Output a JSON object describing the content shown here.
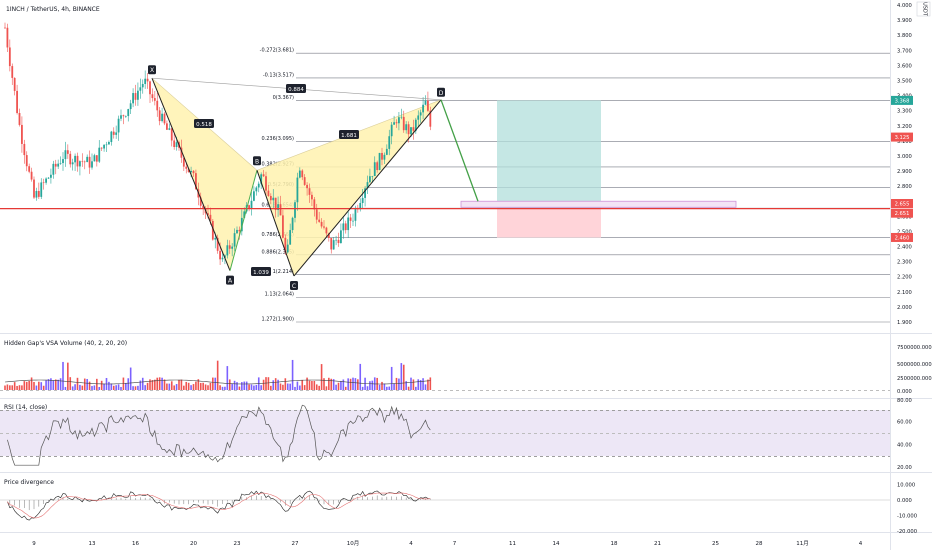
{
  "header": {
    "symbol_title": "1INCH / TetherUS, 4h, BINANCE"
  },
  "price_axis": {
    "currency": "USDT",
    "ticks": [
      "4.000",
      "3.900",
      "3.800",
      "3.700",
      "3.600",
      "3.500",
      "3.400",
      "3.300",
      "3.200",
      "3.100",
      "3.000",
      "2.900",
      "2.800",
      "2.700",
      "2.600",
      "2.500",
      "2.400",
      "2.300",
      "2.200",
      "2.100",
      "2.000",
      "1.900"
    ],
    "badges": {
      "target_label": "3.368",
      "last_label": "3.125",
      "entry_label": "2.655",
      "line_label": "2.651",
      "stop_label": "2.460"
    },
    "badge_colors": {
      "target": "#26a69a",
      "last": "#ef5350",
      "entry": "#ef5350",
      "line": "#ef5350",
      "stop": "#ef5350"
    }
  },
  "time_axis": {
    "ticks": [
      "9",
      "13",
      "16",
      "20",
      "23",
      "27",
      "10月",
      "4",
      "7",
      "11",
      "14",
      "18",
      "21",
      "25",
      "28",
      "11月",
      "4"
    ]
  },
  "harmonic": {
    "points": [
      "X",
      "A",
      "B",
      "C",
      "D"
    ],
    "ratio_xb": "0.518",
    "ratio_ac": "1.039",
    "ratio_bd": "1.681",
    "ratio_xd": "0.884",
    "prices": {
      "X": 3.515,
      "A": 2.24,
      "B": 2.905,
      "C": 2.205,
      "D": 3.372
    }
  },
  "fib_levels": [
    {
      "label": "-0.272(3.681)",
      "price": 3.681
    },
    {
      "label": "-0.13(3.517)",
      "price": 3.517
    },
    {
      "label": "0(3.367)",
      "price": 3.367
    },
    {
      "label": "0.236(3.095)",
      "price": 3.095
    },
    {
      "label": "0.382(2.927)",
      "price": 2.927
    },
    {
      "label": "0.5(2.790)",
      "price": 2.79
    },
    {
      "label": "0.618(2.654)",
      "price": 2.654
    },
    {
      "label": "0.786(2.461)",
      "price": 2.461
    },
    {
      "label": "0.886(2.345)",
      "price": 2.345
    },
    {
      "label": "1(2.214)",
      "price": 2.214
    },
    {
      "label": "1.13(2.064)",
      "price": 2.064
    },
    {
      "label": "1.272(1.900)",
      "price": 1.9
    }
  ],
  "indicators": {
    "volume": {
      "title": "Hidden Gap's VSA Volume (40, 2, 20, 20)",
      "ticks": [
        "7500000.000",
        "5000000.000",
        "2500000.000",
        "0.000"
      ]
    },
    "rsi": {
      "title": "RSI (14, close)",
      "ticks": [
        "80.00",
        "60.00",
        "40.00",
        "20.00"
      ]
    },
    "divergence": {
      "title": "Price divergence",
      "ticks": [
        "10.000",
        "0.000",
        "-10.000",
        "-20.000"
      ]
    }
  },
  "colors": {
    "up": "#26a69a",
    "down": "#ef5350",
    "pattern_fill": "#fff3b0",
    "target_zone": "#b2dfdb",
    "stop_zone": "#ffcdd2",
    "support_line": "#e53935",
    "rsi": "#555555",
    "rsi_band": "#ede7f6",
    "volume_up": "#7b61ff",
    "volume_down": "#ef5350"
  },
  "chart_data": {
    "type": "candlestick",
    "title": "1INCH / TetherUS, 4h, BINANCE",
    "ylim": [
      1.85,
      4.0
    ],
    "ylabel": "USDT",
    "key_prices": {
      "support_level": 2.651,
      "entry": 2.655,
      "target": 3.368,
      "stop": 2.46,
      "last": 3.125
    },
    "swing_path": [
      {
        "day": 7,
        "price": 3.85
      },
      {
        "day": 8,
        "price": 3.2
      },
      {
        "day": 9,
        "price": 2.72
      },
      {
        "day": 11,
        "price": 3.0
      },
      {
        "day": 13,
        "price": 2.95
      },
      {
        "day": 15,
        "price": 3.25
      },
      {
        "day": 16.6,
        "price": 3.5
      },
      {
        "day": 18,
        "price": 3.2
      },
      {
        "day": 20,
        "price": 2.85
      },
      {
        "day": 22,
        "price": 2.3
      },
      {
        "day": 23.5,
        "price": 2.6
      },
      {
        "day": 24.7,
        "price": 2.88
      },
      {
        "day": 26,
        "price": 2.6
      },
      {
        "day": 26.4,
        "price": 2.3
      },
      {
        "day": 27.3,
        "price": 2.95
      },
      {
        "day": 28.5,
        "price": 2.6
      },
      {
        "day": 29.5,
        "price": 2.4
      },
      {
        "day": 31,
        "price": 2.6
      },
      {
        "day": 32,
        "price": 2.85
      },
      {
        "day": 33,
        "price": 3.0
      },
      {
        "day": 34,
        "price": 3.25
      },
      {
        "day": 35,
        "price": 3.15
      },
      {
        "day": 36,
        "price": 3.35
      },
      {
        "day": 36.5,
        "price": 3.12
      }
    ],
    "rsi_range": [
      20,
      80
    ],
    "divergence_range": [
      -20,
      10
    ]
  }
}
